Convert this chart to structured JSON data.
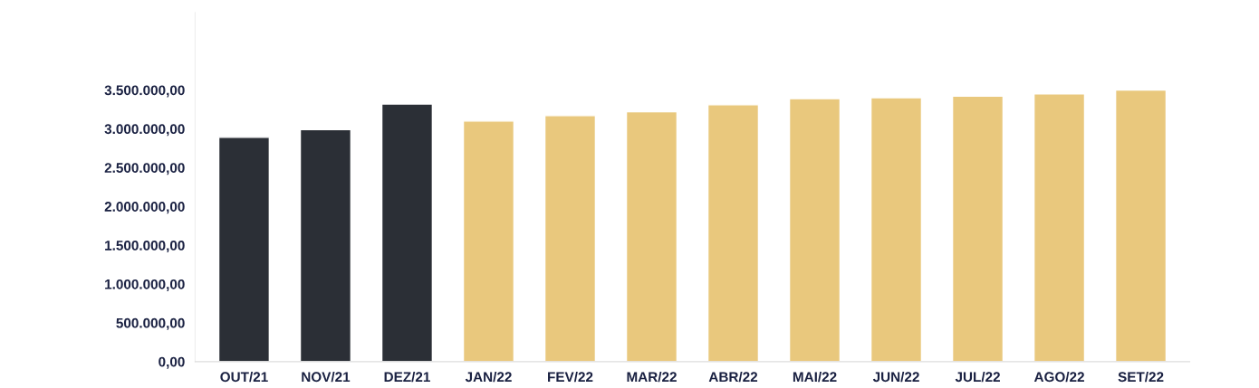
{
  "chart_data": {
    "type": "bar",
    "categories": [
      "OUT/21",
      "NOV/21",
      "DEZ/21",
      "JAN/22",
      "FEV/22",
      "MAR/22",
      "ABR/22",
      "MAI/22",
      "JUN/22",
      "JUL/22",
      "AGO/22",
      "SET/22"
    ],
    "values": [
      2890000,
      2990000,
      3320000,
      3100000,
      3170000,
      3220000,
      3310000,
      3390000,
      3400000,
      3420000,
      3450000,
      3500000
    ],
    "colors": [
      "#2b2f36",
      "#2b2f36",
      "#2b2f36",
      "#e9c87d",
      "#e9c87d",
      "#e9c87d",
      "#e9c87d",
      "#e9c87d",
      "#e9c87d",
      "#e9c87d",
      "#e9c87d",
      "#e9c87d"
    ],
    "ylim": [
      0,
      4500000
    ],
    "yticks": [
      {
        "value": 0,
        "label": "0,00"
      },
      {
        "value": 500000,
        "label": "500.000,00"
      },
      {
        "value": 1000000,
        "label": "1.000.000,00"
      },
      {
        "value": 1500000,
        "label": "1.500.000,00"
      },
      {
        "value": 2000000,
        "label": "2.000.000,00"
      },
      {
        "value": 2500000,
        "label": "2.500.000,00"
      },
      {
        "value": 3000000,
        "label": "3.000.000,00"
      },
      {
        "value": 3500000,
        "label": "3.500.000,00"
      }
    ],
    "grid": false
  }
}
